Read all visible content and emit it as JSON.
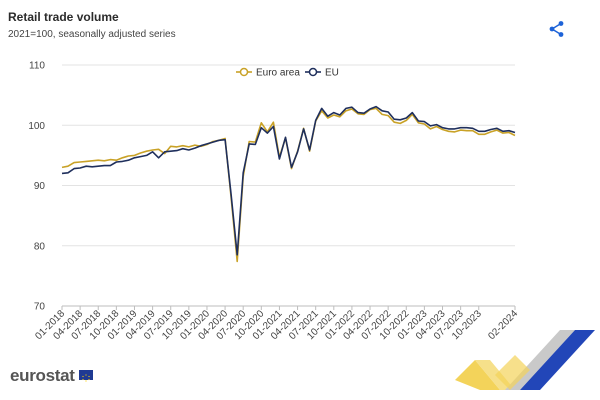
{
  "header": {
    "title": "Retail trade volume",
    "subtitle": "2021=100, seasonally adjusted series"
  },
  "branding": {
    "logo_text": "eurostat"
  },
  "icons": {
    "share": "share-icon"
  },
  "colors": {
    "euro_area": "#c9a227",
    "eu": "#1f2f5c",
    "grid": "#e3e3e3",
    "flag": "#1f3a93"
  },
  "chart_data": {
    "type": "line",
    "title": "",
    "xlabel": "",
    "ylabel": "",
    "ylim": [
      70,
      110
    ],
    "yticks": [
      70,
      80,
      90,
      100,
      110
    ],
    "grid": true,
    "legend_position": "top-center",
    "x_tick_labels": [
      "01-2018",
      "04-2018",
      "07-2018",
      "10-2018",
      "01-2019",
      "04-2019",
      "07-2019",
      "10-2019",
      "01-2020",
      "04-2020",
      "07-2020",
      "10-2020",
      "01-2021",
      "04-2021",
      "07-2021",
      "10-2021",
      "01-2022",
      "04-2022",
      "07-2022",
      "10-2022",
      "01-2023",
      "04-2023",
      "07-2023",
      "10-2023",
      "02-2024"
    ],
    "x_start": "01-2018",
    "x_end": "02-2024",
    "series": [
      {
        "name": "Euro area",
        "values": [
          93.0,
          93.2,
          93.8,
          93.9,
          94.0,
          94.1,
          94.2,
          94.1,
          94.3,
          94.2,
          94.6,
          94.9,
          95.0,
          95.4,
          95.7,
          95.9,
          96.0,
          95.3,
          96.5,
          96.4,
          96.6,
          96.4,
          96.7,
          96.5,
          96.8,
          97.3,
          97.5,
          97.8,
          88.0,
          77.4,
          91.5,
          97.3,
          97.2,
          100.4,
          98.9,
          100.5,
          94.7,
          97.9,
          92.8,
          95.7,
          99.5,
          95.7,
          100.7,
          102.4,
          101.2,
          101.7,
          101.4,
          102.4,
          102.7,
          101.9,
          101.8,
          102.6,
          102.8,
          101.8,
          101.6,
          100.5,
          100.3,
          100.8,
          101.8,
          100.4,
          100.2,
          99.4,
          99.8,
          99.3,
          99.0,
          98.9,
          99.2,
          99.1,
          99.1,
          98.5,
          98.5,
          98.9,
          99.2,
          98.7,
          98.8,
          98.3
        ]
      },
      {
        "name": "EU",
        "values": [
          92.0,
          92.1,
          92.8,
          92.9,
          93.2,
          93.1,
          93.2,
          93.3,
          93.3,
          93.9,
          94.0,
          94.2,
          94.6,
          94.8,
          95.0,
          95.6,
          94.6,
          95.6,
          95.7,
          95.8,
          96.1,
          95.9,
          96.2,
          96.6,
          96.9,
          97.2,
          97.5,
          97.6,
          88.5,
          78.5,
          92.1,
          96.9,
          96.8,
          99.6,
          98.7,
          99.8,
          94.4,
          98.0,
          93.0,
          95.6,
          99.4,
          95.9,
          100.8,
          102.8,
          101.5,
          102.1,
          101.7,
          102.8,
          103.0,
          102.1,
          102.0,
          102.7,
          103.1,
          102.4,
          102.2,
          101.0,
          100.9,
          101.2,
          102.1,
          100.7,
          100.6,
          99.9,
          100.1,
          99.6,
          99.4,
          99.4,
          99.6,
          99.6,
          99.5,
          99.0,
          99.0,
          99.3,
          99.5,
          99.0,
          99.1,
          98.8
        ]
      }
    ]
  }
}
